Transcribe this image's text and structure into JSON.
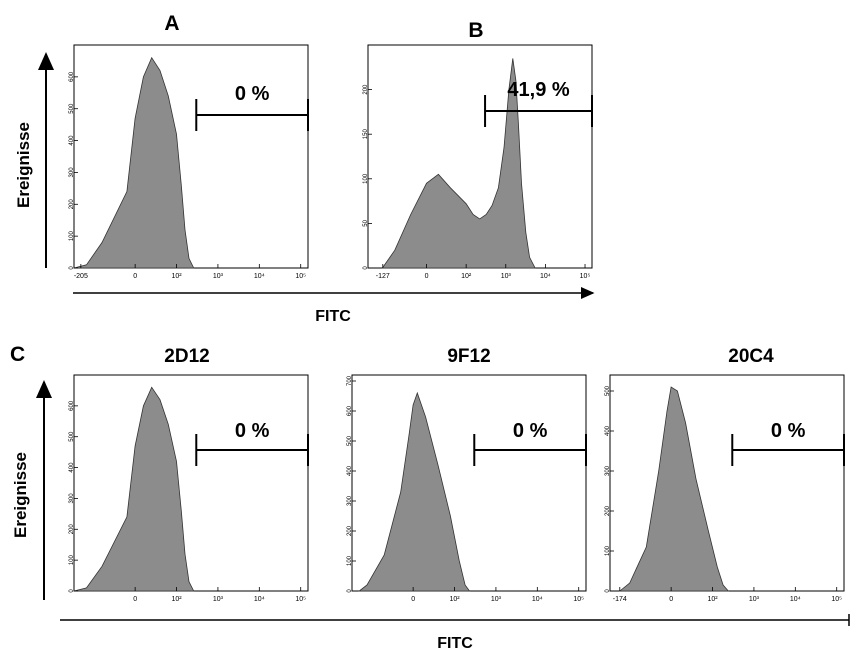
{
  "figure": {
    "panel_labels": {
      "a": "A",
      "b": "B",
      "c": "C"
    },
    "y_axis_label": "Ereignisse",
    "x_axis_label": "FITC"
  },
  "chart_data": [
    {
      "type": "area",
      "title": "A",
      "gate_label": "0 %",
      "x_scale": "logicle",
      "x_ticks": [
        "-205",
        "0",
        "10²",
        "10³",
        "10⁴",
        "10⁵"
      ],
      "y_ticks": [
        "0",
        "100",
        "200",
        "300",
        "400",
        "500",
        "600"
      ],
      "ylim": [
        0,
        700
      ],
      "gate_range": [
        300,
        100000
      ],
      "series": [
        {
          "x": [
            -300,
            -150,
            -80,
            -20,
            0,
            20,
            40,
            60,
            80,
            100,
            130,
            160,
            200,
            260
          ],
          "values": [
            0,
            10,
            80,
            240,
            470,
            600,
            660,
            620,
            540,
            420,
            260,
            120,
            30,
            0
          ]
        }
      ]
    },
    {
      "type": "area",
      "title": "B",
      "gate_label": "41,9 %",
      "x_scale": "logicle",
      "x_ticks": [
        "-127",
        "0",
        "10²",
        "10³",
        "10⁴",
        "10⁵"
      ],
      "y_ticks": [
        "0",
        "50",
        "100",
        "150",
        "200"
      ],
      "ylim": [
        0,
        250
      ],
      "gate_range": [
        300,
        100000
      ],
      "series": [
        {
          "x": [
            -130,
            -80,
            -40,
            0,
            30,
            60,
            100,
            150,
            220,
            320,
            450,
            650,
            900,
            1200,
            1500,
            1800,
            2100,
            2500,
            3200,
            4000,
            5500
          ],
          "values": [
            0,
            20,
            60,
            95,
            105,
            90,
            72,
            60,
            55,
            60,
            70,
            90,
            135,
            200,
            235,
            210,
            160,
            95,
            40,
            12,
            0
          ]
        }
      ]
    },
    {
      "type": "area",
      "title": "2D12",
      "gate_label": "0 %",
      "x_scale": "logicle",
      "x_ticks": [
        "0",
        "10²",
        "10³",
        "10⁴",
        "10⁵"
      ],
      "y_ticks": [
        "0",
        "100",
        "200",
        "300",
        "400",
        "500",
        "600"
      ],
      "ylim": [
        0,
        700
      ],
      "gate_range": [
        300,
        100000
      ],
      "series": [
        {
          "x": [
            -300,
            -150,
            -80,
            -20,
            0,
            20,
            40,
            60,
            80,
            100,
            130,
            160,
            200,
            260
          ],
          "values": [
            0,
            10,
            80,
            240,
            470,
            600,
            660,
            620,
            540,
            420,
            260,
            120,
            30,
            0
          ]
        }
      ]
    },
    {
      "type": "area",
      "title": "9F12",
      "gate_label": "0 %",
      "x_scale": "logicle",
      "x_ticks": [
        "0",
        "10²",
        "10³",
        "10⁴",
        "10⁵"
      ],
      "y_ticks": [
        "0",
        "100",
        "200",
        "300",
        "400",
        "500",
        "600",
        "700"
      ],
      "ylim": [
        0,
        720
      ],
      "gate_range": [
        300,
        100000
      ],
      "series": [
        {
          "x": [
            -200,
            -130,
            -70,
            -30,
            -10,
            0,
            10,
            30,
            60,
            90,
            130,
            180,
            230
          ],
          "values": [
            0,
            20,
            120,
            330,
            520,
            620,
            660,
            580,
            420,
            250,
            100,
            20,
            0
          ]
        }
      ]
    },
    {
      "type": "area",
      "title": "20C4",
      "gate_label": "0 %",
      "x_scale": "logicle",
      "x_ticks": [
        "-174",
        "0",
        "10²",
        "10³",
        "10⁴",
        "10⁵"
      ],
      "y_ticks": [
        "0",
        "100",
        "200",
        "300",
        "400",
        "500"
      ],
      "ylim": [
        0,
        540
      ],
      "gate_range": [
        300,
        100000
      ],
      "series": [
        {
          "x": [
            -174,
            -100,
            -60,
            -30,
            -10,
            0,
            15,
            35,
            60,
            90,
            130,
            180,
            240
          ],
          "values": [
            0,
            20,
            110,
            300,
            450,
            510,
            500,
            420,
            280,
            150,
            60,
            15,
            0
          ]
        }
      ]
    }
  ]
}
